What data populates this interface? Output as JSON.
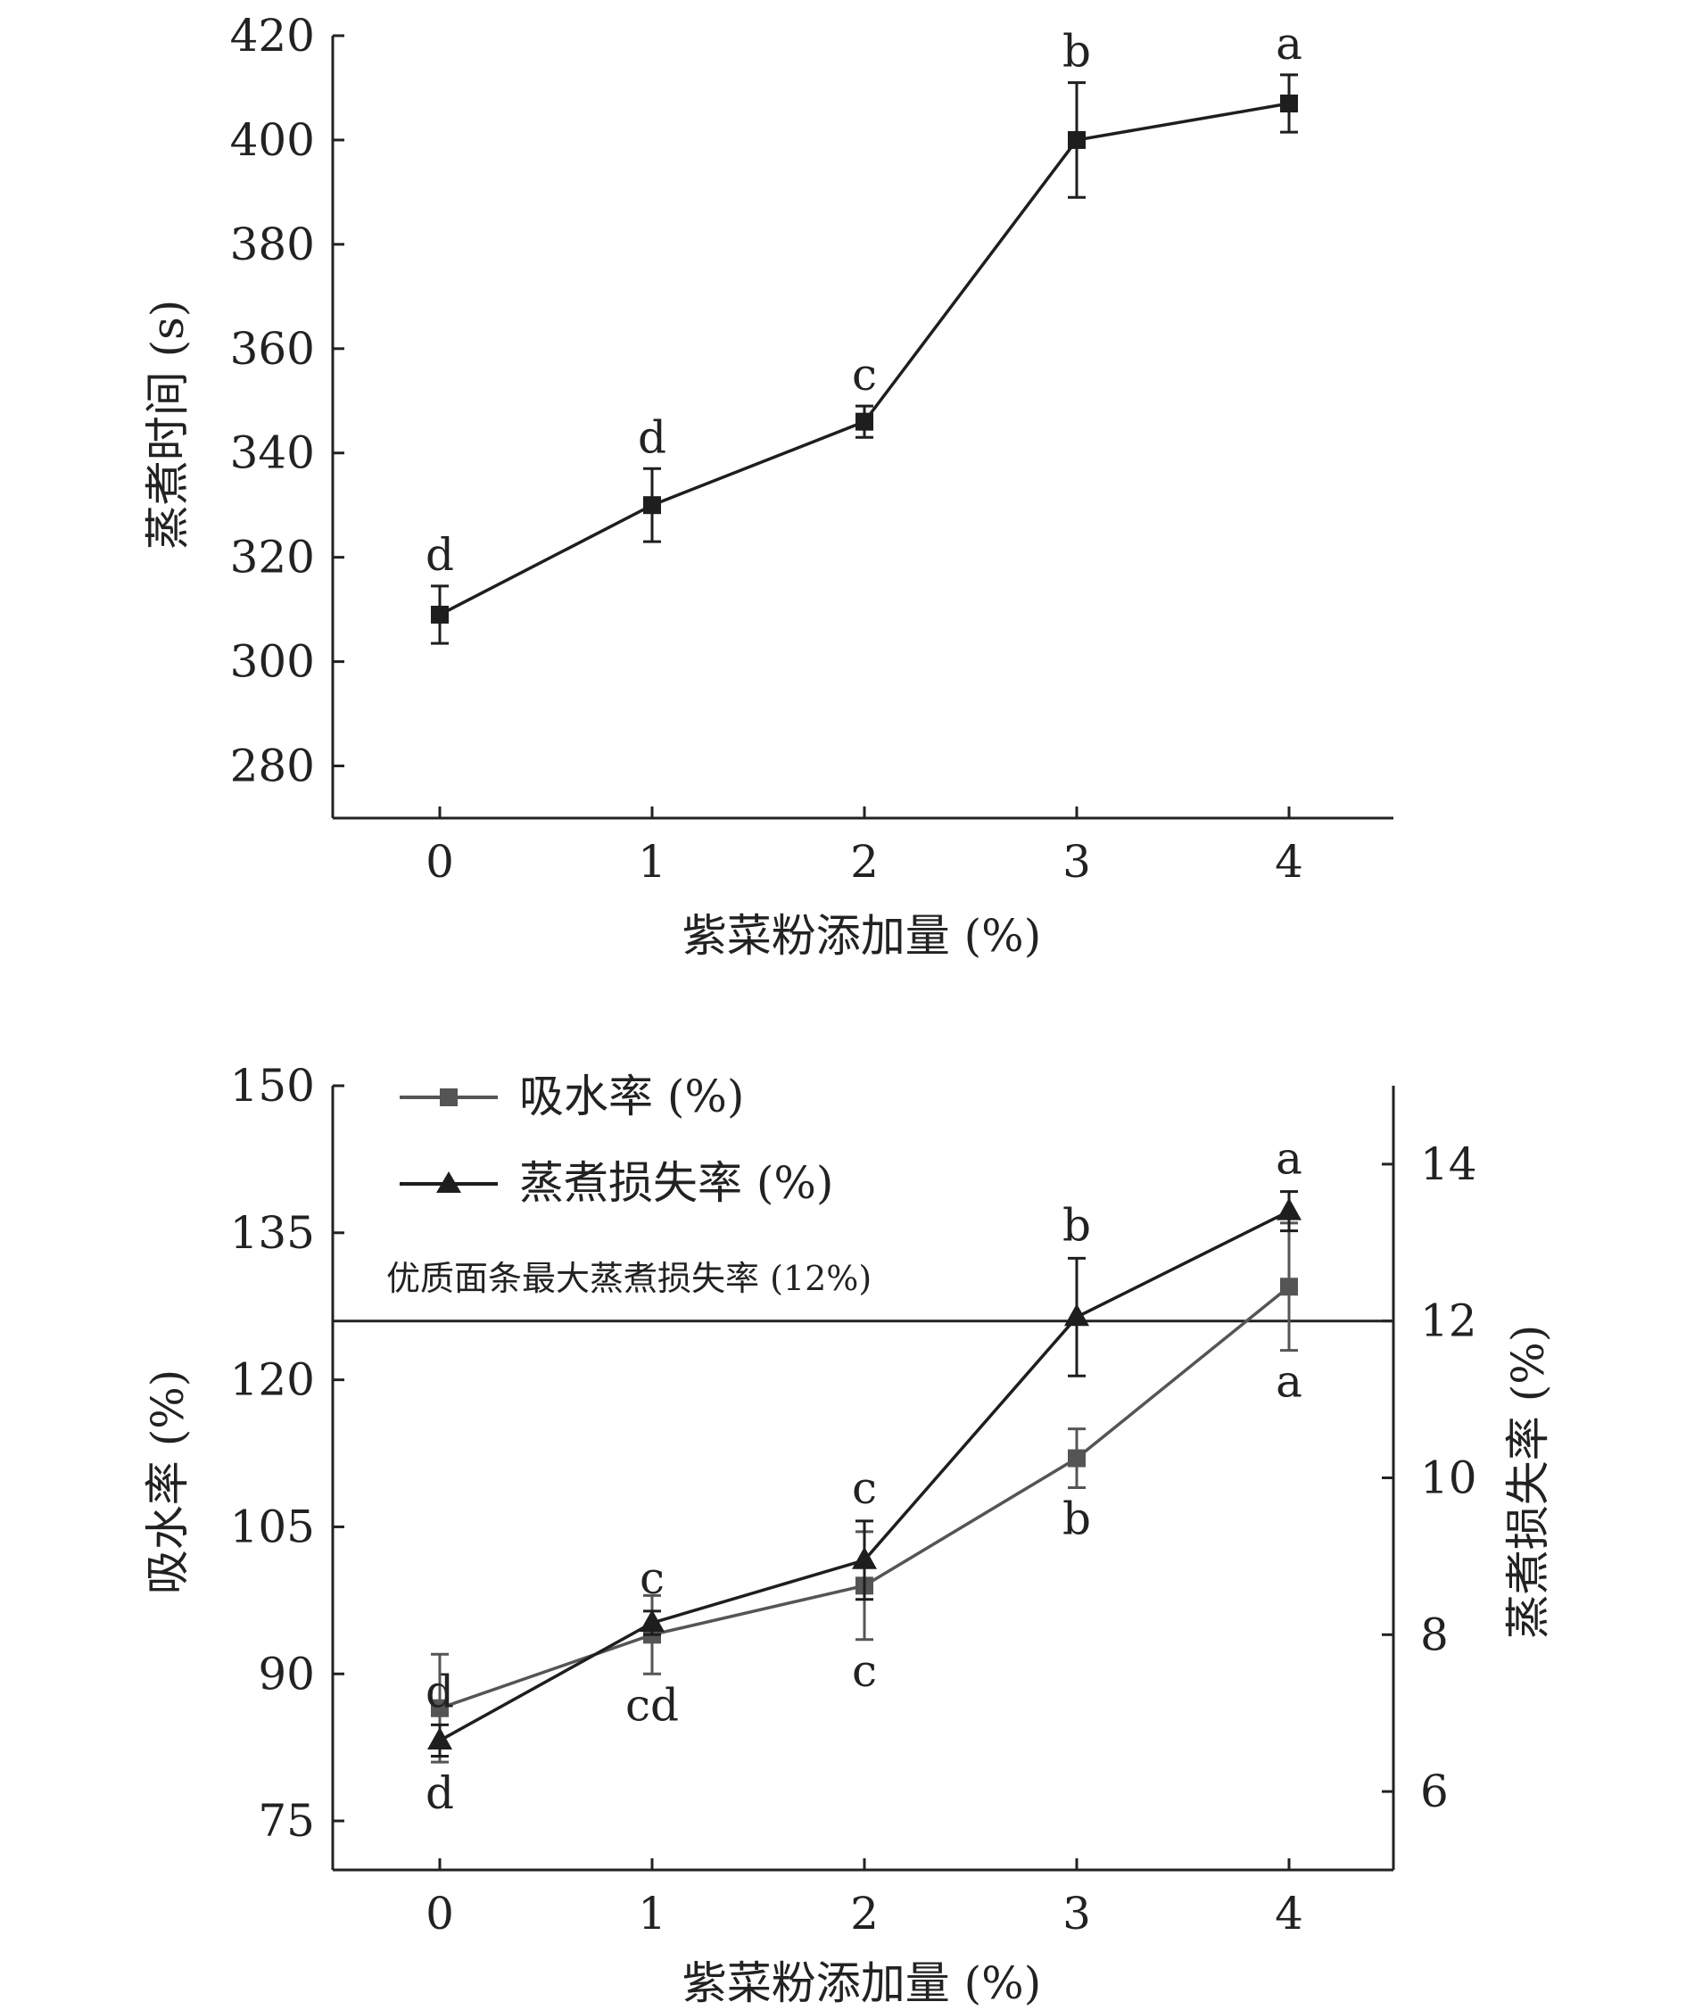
{
  "chart_data": [
    {
      "type": "line",
      "xlabel": "紫菜粉添加量 (%)",
      "ylabel": "蒸煮时间 (s)",
      "x": [
        0,
        1,
        2,
        3,
        4
      ],
      "xticks": [
        "0",
        "1",
        "2",
        "3",
        "4"
      ],
      "ylim": [
        270,
        420
      ],
      "yticks": [
        "280",
        "300",
        "320",
        "340",
        "360",
        "380",
        "400",
        "420"
      ],
      "series": [
        {
          "color": "#1e1e1e",
          "marker": "square",
          "values": [
            309,
            330,
            346,
            400,
            407
          ],
          "error": [
            5.5,
            7,
            3,
            11,
            5.5
          ],
          "letters": [
            "d",
            "d",
            "c",
            "b",
            "a"
          ]
        }
      ]
    },
    {
      "type": "line",
      "xlabel": "紫菜粉添加量 (%)",
      "ylabel": "吸水率 (%)",
      "ylabel_right": "蒸煮损失率 (%)",
      "x": [
        0,
        1,
        2,
        3,
        4
      ],
      "xticks": [
        "0",
        "1",
        "2",
        "3",
        "4"
      ],
      "ylim": [
        70,
        150
      ],
      "yticks": [
        "75",
        "90",
        "105",
        "120",
        "135",
        "150"
      ],
      "ylim_right": [
        5,
        15
      ],
      "yticks_right": [
        "6",
        "8",
        "10",
        "12",
        "14"
      ],
      "legend_position": "top-left",
      "series": [
        {
          "name": "吸水率 (%)",
          "axis": "left",
          "color": "#555555",
          "marker": "square",
          "values": [
            86.5,
            94,
            99,
            112,
            129.5
          ],
          "error": [
            5.5,
            4,
            5.5,
            3,
            6.5
          ],
          "letters": [
            "d",
            "cd",
            "c",
            "b",
            "a"
          ]
        },
        {
          "name": "蒸煮损失率 (%)",
          "axis": "right",
          "color": "#1e1e1e",
          "marker": "triangle",
          "values": [
            6.65,
            8.15,
            8.95,
            12.05,
            13.4
          ],
          "error": [
            0.2,
            0.15,
            0.5,
            0.75,
            0.25
          ],
          "letters": [
            "d",
            "c",
            "c",
            "b",
            "a"
          ]
        }
      ],
      "reference_line": {
        "axis": "right",
        "value": 12,
        "label": "优质面条最大蒸煮损失率 (12%)"
      }
    }
  ]
}
